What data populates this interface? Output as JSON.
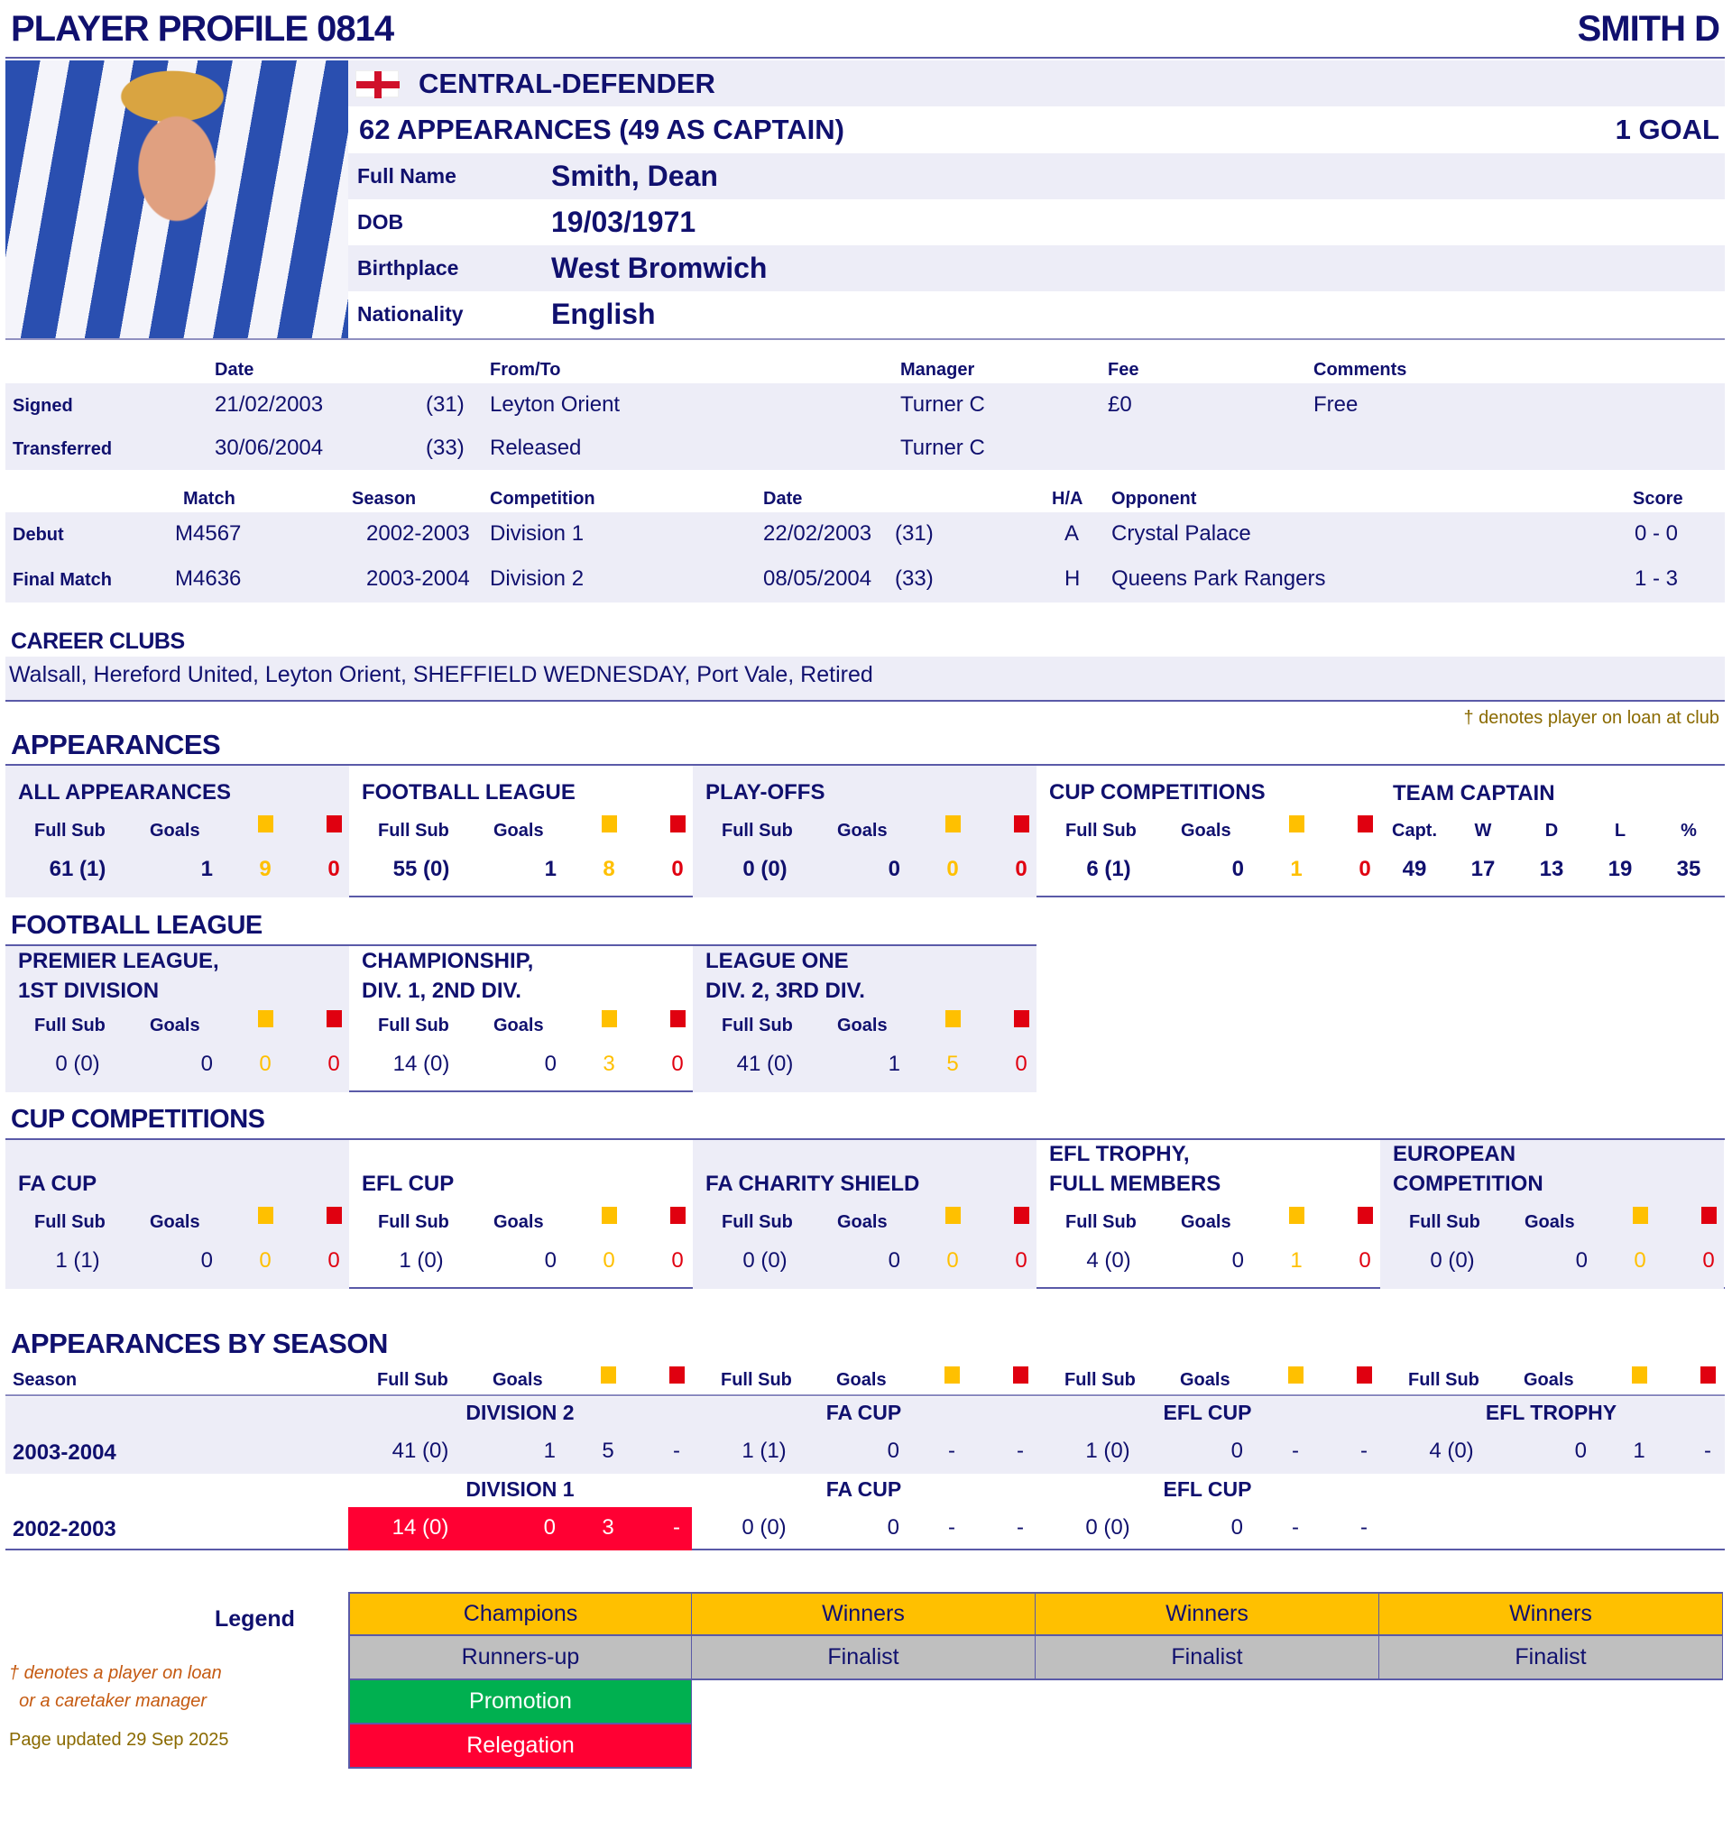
{
  "header": {
    "title": "PLAYER PROFILE 0814",
    "short_name": "SMITH D"
  },
  "profile": {
    "flag_icon": "england-flag",
    "position": "CENTRAL-DEFENDER",
    "appearances": "62 APPEARANCES (49 AS CAPTAIN)",
    "goals": "1 GOAL",
    "fields": [
      {
        "label": "Full Name",
        "value": "Smith, Dean"
      },
      {
        "label": "DOB",
        "value": "19/03/1971"
      },
      {
        "label": "Birthplace",
        "value": "West Bromwich"
      },
      {
        "label": "Nationality",
        "value": "English"
      }
    ]
  },
  "transfers": {
    "headers": [
      "Date",
      "From/To",
      "Manager",
      "Fee",
      "Comments"
    ],
    "rows": [
      [
        "Signed",
        "21/02/2003",
        "(31)",
        "Leyton Orient",
        "Turner C",
        "£0",
        "Free"
      ],
      [
        "Transferred",
        "30/06/2004",
        "(33)",
        "Released",
        "Turner C",
        "",
        ""
      ]
    ]
  },
  "matches": {
    "headers": [
      "Match",
      "Season",
      "Competition",
      "Date",
      "H/A",
      "Opponent",
      "Score"
    ],
    "rows": [
      [
        "Debut",
        "M4567",
        "2002-2003",
        "Division 1",
        "22/02/2003",
        "(31)",
        "A",
        "Crystal Palace",
        "0 - 0"
      ],
      [
        "Final Match",
        "M4636",
        "2003-2004",
        "Division 2",
        "08/05/2004",
        "(33)",
        "H",
        "Queens Park Rangers",
        "1 - 3"
      ]
    ]
  },
  "career": {
    "heading": "CAREER CLUBS",
    "clubs": "Walsall, Hereford United, Leyton Orient, SHEFFIELD WEDNESDAY, Port Vale, Retired",
    "loan_note": "† denotes player on loan at club"
  },
  "stat_headers": {
    "full_sub": "Full Sub",
    "goals": "Goals"
  },
  "appearances": {
    "heading": "APPEARANCES",
    "blocks": [
      {
        "title": "ALL APPEARANCES",
        "apps": "61 (1)",
        "goals": "1",
        "yellow": "9",
        "red": "0"
      },
      {
        "title": "FOOTBALL LEAGUE",
        "apps": "55 (0)",
        "goals": "1",
        "yellow": "8",
        "red": "0"
      },
      {
        "title": "PLAY-OFFS",
        "apps": "0 (0)",
        "goals": "0",
        "yellow": "0",
        "red": "0"
      },
      {
        "title": "CUP COMPETITIONS",
        "apps": "6 (1)",
        "goals": "0",
        "yellow": "1",
        "red": "0"
      }
    ],
    "captain": {
      "title": "TEAM CAPTAIN",
      "headers": [
        "Capt.",
        "W",
        "D",
        "L",
        "%"
      ],
      "values": [
        "49",
        "17",
        "13",
        "19",
        "35"
      ]
    }
  },
  "football_league": {
    "heading": "FOOTBALL LEAGUE",
    "blocks": [
      {
        "title": "PREMIER LEAGUE,\n1ST DIVISION",
        "apps": "0 (0)",
        "goals": "0",
        "yellow": "0",
        "red": "0"
      },
      {
        "title": "CHAMPIONSHIP,\nDIV. 1, 2ND DIV.",
        "apps": "14 (0)",
        "goals": "0",
        "yellow": "3",
        "red": "0"
      },
      {
        "title": "LEAGUE ONE\nDIV. 2, 3RD DIV.",
        "apps": "41 (0)",
        "goals": "1",
        "yellow": "5",
        "red": "0"
      }
    ]
  },
  "cups": {
    "heading": "CUP COMPETITIONS",
    "blocks": [
      {
        "title": "FA CUP",
        "apps": "1 (1)",
        "goals": "0",
        "yellow": "0",
        "red": "0"
      },
      {
        "title": "EFL CUP",
        "apps": "1 (0)",
        "goals": "0",
        "yellow": "0",
        "red": "0"
      },
      {
        "title": "FA CHARITY SHIELD",
        "apps": "0 (0)",
        "goals": "0",
        "yellow": "0",
        "red": "0"
      },
      {
        "title": "EFL TROPHY,\nFULL MEMBERS",
        "apps": "4 (0)",
        "goals": "0",
        "yellow": "1",
        "red": "0"
      },
      {
        "title": "EUROPEAN\nCOMPETITION",
        "apps": "0 (0)",
        "goals": "0",
        "yellow": "0",
        "red": "0"
      }
    ]
  },
  "by_season": {
    "heading": "APPEARANCES BY SEASON",
    "season_label": "Season",
    "seasons": [
      {
        "season": "2003-2004",
        "comps": [
          {
            "name": "DIVISION 2",
            "apps": "41 (0)",
            "goals": "1",
            "yellow": "5",
            "red": "-"
          },
          {
            "name": "FA CUP",
            "apps": "1 (1)",
            "goals": "0",
            "yellow": "-",
            "red": "-"
          },
          {
            "name": "EFL CUP",
            "apps": "1 (0)",
            "goals": "0",
            "yellow": "-",
            "red": "-"
          },
          {
            "name": "EFL TROPHY",
            "apps": "4 (0)",
            "goals": "0",
            "yellow": "1",
            "red": "-"
          }
        ]
      },
      {
        "season": "2002-2003",
        "comps": [
          {
            "name": "DIVISION 1",
            "apps": "14 (0)",
            "goals": "0",
            "yellow": "3",
            "red": "-",
            "highlight": "relegation"
          },
          {
            "name": "FA CUP",
            "apps": "0 (0)",
            "goals": "0",
            "yellow": "-",
            "red": "-"
          },
          {
            "name": "EFL CUP",
            "apps": "0 (0)",
            "goals": "0",
            "yellow": "-",
            "red": "-"
          }
        ]
      }
    ]
  },
  "legend": {
    "label": "Legend",
    "rows": [
      [
        "Champions",
        "Winners",
        "Winners",
        "Winners"
      ],
      [
        "Runners-up",
        "Finalist",
        "Finalist",
        "Finalist"
      ],
      [
        "Promotion"
      ],
      [
        "Relegation"
      ]
    ],
    "colors": {
      "winners": "#ffc000",
      "finalist": "#bfbfbf",
      "promotion": "#00b050",
      "relegation": "#ff0033"
    },
    "loan_note": "† denotes a player on loan\n  or a caretaker manager",
    "updated": "Page updated 29 Sep 2025"
  },
  "colors": {
    "navy": "#10106e",
    "lavender": "#ededf7",
    "yellow_card": "#ffc000",
    "red_card": "#e00010"
  }
}
